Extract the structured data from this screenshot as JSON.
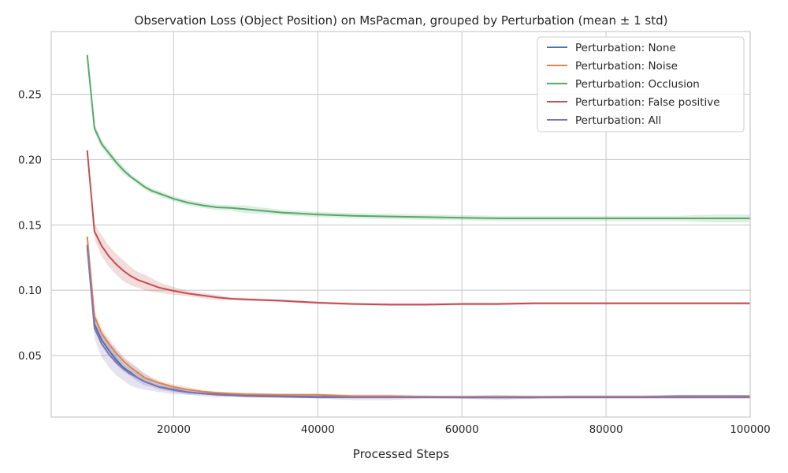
{
  "chart_data": {
    "type": "line",
    "title": "Observation Loss (Object Position) on MsPacman, grouped by Perturbation (mean ± 1 std)",
    "xlabel": "Processed Steps",
    "ylabel": "",
    "xlim": [
      3000,
      100000
    ],
    "ylim": [
      0.003,
      0.298
    ],
    "xticks": [
      20000,
      40000,
      60000,
      80000,
      100000
    ],
    "xtick_labels": [
      "20000",
      "40000",
      "60000",
      "80000",
      "100000"
    ],
    "yticks": [
      0.05,
      0.1,
      0.15,
      0.2,
      0.25
    ],
    "ytick_labels": [
      "0.05",
      "0.10",
      "0.15",
      "0.20",
      "0.25"
    ],
    "grid": true,
    "legend_position": "top-right",
    "x": [
      8000,
      9000,
      10000,
      11000,
      12000,
      13000,
      14000,
      15000,
      16000,
      17000,
      18000,
      20000,
      22000,
      24000,
      26000,
      28000,
      30000,
      35000,
      40000,
      45000,
      50000,
      55000,
      60000,
      65000,
      70000,
      75000,
      80000,
      85000,
      90000,
      95000,
      100000
    ],
    "series": [
      {
        "name": "Perturbation: None",
        "color": "#4c72b0",
        "values": [
          0.135,
          0.074,
          0.062,
          0.054,
          0.047,
          0.041,
          0.037,
          0.033,
          0.03,
          0.028,
          0.026,
          0.024,
          0.022,
          0.021,
          0.0205,
          0.02,
          0.0195,
          0.019,
          0.0185,
          0.0185,
          0.0185,
          0.0185,
          0.018,
          0.018,
          0.018,
          0.0185,
          0.0185,
          0.0185,
          0.019,
          0.019,
          0.019
        ],
        "std": [
          0.004,
          0.004,
          0.004,
          0.004,
          0.004,
          0.003,
          0.003,
          0.003,
          0.003,
          0.002,
          0.002,
          0.002,
          0.002,
          0.001,
          0.001,
          0.001,
          0.001,
          0.001,
          0.001,
          0.001,
          0.001,
          0.001,
          0.001,
          0.001,
          0.001,
          0.001,
          0.001,
          0.001,
          0.001,
          0.001,
          0.001
        ]
      },
      {
        "name": "Perturbation: Noise",
        "color": "#dd8452",
        "values": [
          0.141,
          0.08,
          0.067,
          0.059,
          0.052,
          0.046,
          0.041,
          0.037,
          0.033,
          0.031,
          0.029,
          0.026,
          0.024,
          0.0225,
          0.0215,
          0.021,
          0.0205,
          0.02,
          0.02,
          0.019,
          0.019,
          0.0185,
          0.0185,
          0.0185,
          0.0185,
          0.0185,
          0.0185,
          0.0185,
          0.0185,
          0.0185,
          0.0185
        ],
        "std": [
          0.004,
          0.004,
          0.004,
          0.004,
          0.004,
          0.003,
          0.003,
          0.003,
          0.003,
          0.002,
          0.002,
          0.002,
          0.002,
          0.001,
          0.001,
          0.001,
          0.001,
          0.001,
          0.001,
          0.001,
          0.001,
          0.001,
          0.001,
          0.001,
          0.001,
          0.001,
          0.001,
          0.001,
          0.001,
          0.001,
          0.001
        ]
      },
      {
        "name": "Perturbation: Occlusion",
        "color": "#55a868",
        "values": [
          0.28,
          0.224,
          0.212,
          0.205,
          0.198,
          0.192,
          0.187,
          0.183,
          0.179,
          0.176,
          0.174,
          0.17,
          0.167,
          0.165,
          0.1635,
          0.163,
          0.162,
          0.1595,
          0.158,
          0.157,
          0.1565,
          0.156,
          0.1555,
          0.155,
          0.155,
          0.155,
          0.155,
          0.155,
          0.155,
          0.155,
          0.155
        ],
        "std": [
          0.003,
          0.003,
          0.003,
          0.003,
          0.003,
          0.003,
          0.002,
          0.002,
          0.002,
          0.002,
          0.002,
          0.002,
          0.002,
          0.002,
          0.002,
          0.002,
          0.003,
          0.002,
          0.002,
          0.002,
          0.002,
          0.002,
          0.002,
          0.002,
          0.002,
          0.002,
          0.002,
          0.002,
          0.002,
          0.003,
          0.003
        ]
      },
      {
        "name": "Perturbation: False positive",
        "color": "#c44e52",
        "values": [
          0.207,
          0.145,
          0.134,
          0.126,
          0.12,
          0.115,
          0.111,
          0.108,
          0.106,
          0.104,
          0.102,
          0.0995,
          0.0975,
          0.096,
          0.0945,
          0.0935,
          0.093,
          0.092,
          0.0905,
          0.0895,
          0.089,
          0.089,
          0.0895,
          0.0895,
          0.09,
          0.09,
          0.09,
          0.09,
          0.09,
          0.09,
          0.09
        ],
        "std": [
          0.004,
          0.006,
          0.008,
          0.008,
          0.008,
          0.008,
          0.007,
          0.006,
          0.006,
          0.005,
          0.004,
          0.003,
          0.002,
          0.002,
          0.002,
          0.001,
          0.001,
          0.001,
          0.001,
          0.001,
          0.001,
          0.001,
          0.001,
          0.001,
          0.001,
          0.001,
          0.001,
          0.001,
          0.001,
          0.001,
          0.001
        ]
      },
      {
        "name": "Perturbation: All",
        "color": "#8172b3",
        "values": [
          0.133,
          0.071,
          0.059,
          0.051,
          0.045,
          0.04,
          0.036,
          0.033,
          0.03,
          0.028,
          0.026,
          0.0235,
          0.022,
          0.021,
          0.02,
          0.0195,
          0.019,
          0.0185,
          0.018,
          0.018,
          0.018,
          0.018,
          0.018,
          0.018,
          0.018,
          0.018,
          0.018,
          0.018,
          0.018,
          0.018,
          0.018
        ],
        "std": [
          0.004,
          0.008,
          0.01,
          0.01,
          0.01,
          0.009,
          0.009,
          0.008,
          0.006,
          0.005,
          0.004,
          0.003,
          0.002,
          0.002,
          0.002,
          0.001,
          0.001,
          0.001,
          0.001,
          0.002,
          0.002,
          0.001,
          0.001,
          0.002,
          0.001,
          0.001,
          0.001,
          0.001,
          0.001,
          0.001,
          0.001
        ]
      }
    ]
  }
}
